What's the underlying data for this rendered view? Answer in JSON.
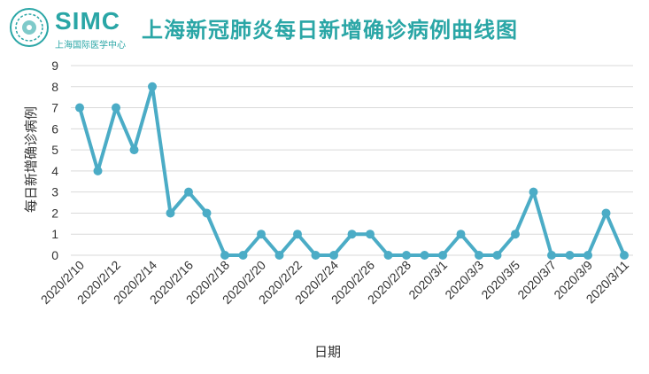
{
  "logo": {
    "text": "SIMC",
    "subtitle": "上海国际医学中心"
  },
  "chart_data": {
    "type": "line",
    "title": "上海新冠肺炎每日新增确诊病例曲线图",
    "xlabel": "日期",
    "ylabel": "每日新增确诊病例",
    "ylim": [
      0,
      9
    ],
    "yticks": [
      "0",
      "1",
      "2",
      "3",
      "4",
      "5",
      "6",
      "7",
      "8",
      "9"
    ],
    "grid": true,
    "x": [
      "2020/2/10",
      "2020/2/11",
      "2020/2/12",
      "2020/2/13",
      "2020/2/14",
      "2020/2/15",
      "2020/2/16",
      "2020/2/17",
      "2020/2/18",
      "2020/2/19",
      "2020/2/20",
      "2020/2/21",
      "2020/2/22",
      "2020/2/23",
      "2020/2/24",
      "2020/2/25",
      "2020/2/26",
      "2020/2/27",
      "2020/2/28",
      "2020/2/29",
      "2020/3/1",
      "2020/3/2",
      "2020/3/3",
      "2020/3/4",
      "2020/3/5",
      "2020/3/6",
      "2020/3/7",
      "2020/3/8",
      "2020/3/9",
      "2020/3/10",
      "2020/3/11"
    ],
    "xtick_labels": [
      "2020/2/10",
      "2020/2/12",
      "2020/2/14",
      "2020/2/16",
      "2020/2/18",
      "2020/2/20",
      "2020/2/22",
      "2020/2/24",
      "2020/2/26",
      "2020/2/28",
      "2020/3/1",
      "2020/3/3",
      "2020/3/5",
      "2020/3/7",
      "2020/3/9",
      "2020/3/11"
    ],
    "series": [
      {
        "values": [
          7,
          4,
          7,
          5,
          8,
          2,
          3,
          2,
          0,
          0,
          1,
          0,
          1,
          0,
          0,
          1,
          1,
          0,
          0,
          0,
          0,
          1,
          0,
          0,
          1,
          3,
          0,
          0,
          0,
          2,
          0
        ],
        "color": "#4bacc6"
      }
    ]
  }
}
